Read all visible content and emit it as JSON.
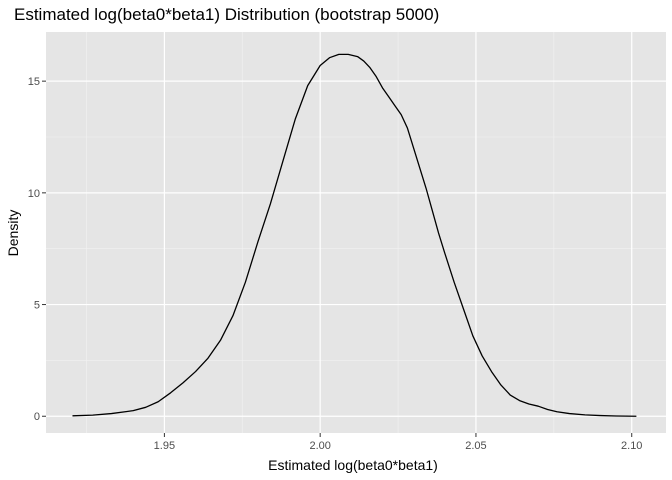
{
  "chart_data": {
    "type": "line",
    "title": "Estimated log(beta0*beta1) Distribution (bootstrap 5000)",
    "xlabel": "Estimated log(beta0*beta1)",
    "ylabel": "Density",
    "xlim": [
      1.912,
      2.111
    ],
    "ylim": [
      -0.75,
      17.2
    ],
    "x_ticks": [
      1.95,
      2.0,
      2.05,
      2.1
    ],
    "x_tick_labels": [
      "1.95",
      "2.00",
      "2.05",
      "2.10"
    ],
    "y_ticks": [
      0,
      5,
      10,
      15
    ],
    "y_tick_labels": [
      "0",
      "5",
      "10",
      "15"
    ],
    "grid": true,
    "legend": "none",
    "series": [
      {
        "x": [
          1.9205,
          1.927,
          1.933,
          1.94,
          1.944,
          1.948,
          1.952,
          1.956,
          1.96,
          1.964,
          1.968,
          1.972,
          1.976,
          1.98,
          1.984,
          1.988,
          1.992,
          1.996,
          2.0,
          2.003,
          2.006,
          2.009,
          2.012,
          2.014,
          2.016,
          2.018,
          2.02,
          2.022,
          2.024,
          2.026,
          2.028,
          2.03,
          2.032,
          2.034,
          2.036,
          2.038,
          2.04,
          2.043,
          2.046,
          2.049,
          2.052,
          2.055,
          2.058,
          2.061,
          2.064,
          2.067,
          2.07,
          2.073,
          2.076,
          2.08,
          2.085,
          2.09,
          2.095,
          2.1015
        ],
        "y": [
          0.02,
          0.05,
          0.12,
          0.25,
          0.4,
          0.65,
          1.05,
          1.5,
          2.0,
          2.6,
          3.4,
          4.5,
          6.0,
          7.8,
          9.5,
          11.4,
          13.3,
          14.8,
          15.7,
          16.05,
          16.2,
          16.2,
          16.1,
          15.9,
          15.6,
          15.2,
          14.7,
          14.3,
          13.9,
          13.5,
          12.9,
          12.0,
          11.1,
          10.2,
          9.2,
          8.2,
          7.3,
          6.0,
          4.8,
          3.6,
          2.7,
          2.0,
          1.4,
          0.95,
          0.7,
          0.55,
          0.45,
          0.3,
          0.2,
          0.12,
          0.06,
          0.03,
          0.01,
          0.0
        ]
      }
    ]
  },
  "colors": {
    "panel_background": "#e5e5e5",
    "grid_major": "#ffffff",
    "grid_minor": "#f2f2f2",
    "line": "#000000",
    "tick_mark": "#333333",
    "tick_label": "#4d4d4d"
  }
}
